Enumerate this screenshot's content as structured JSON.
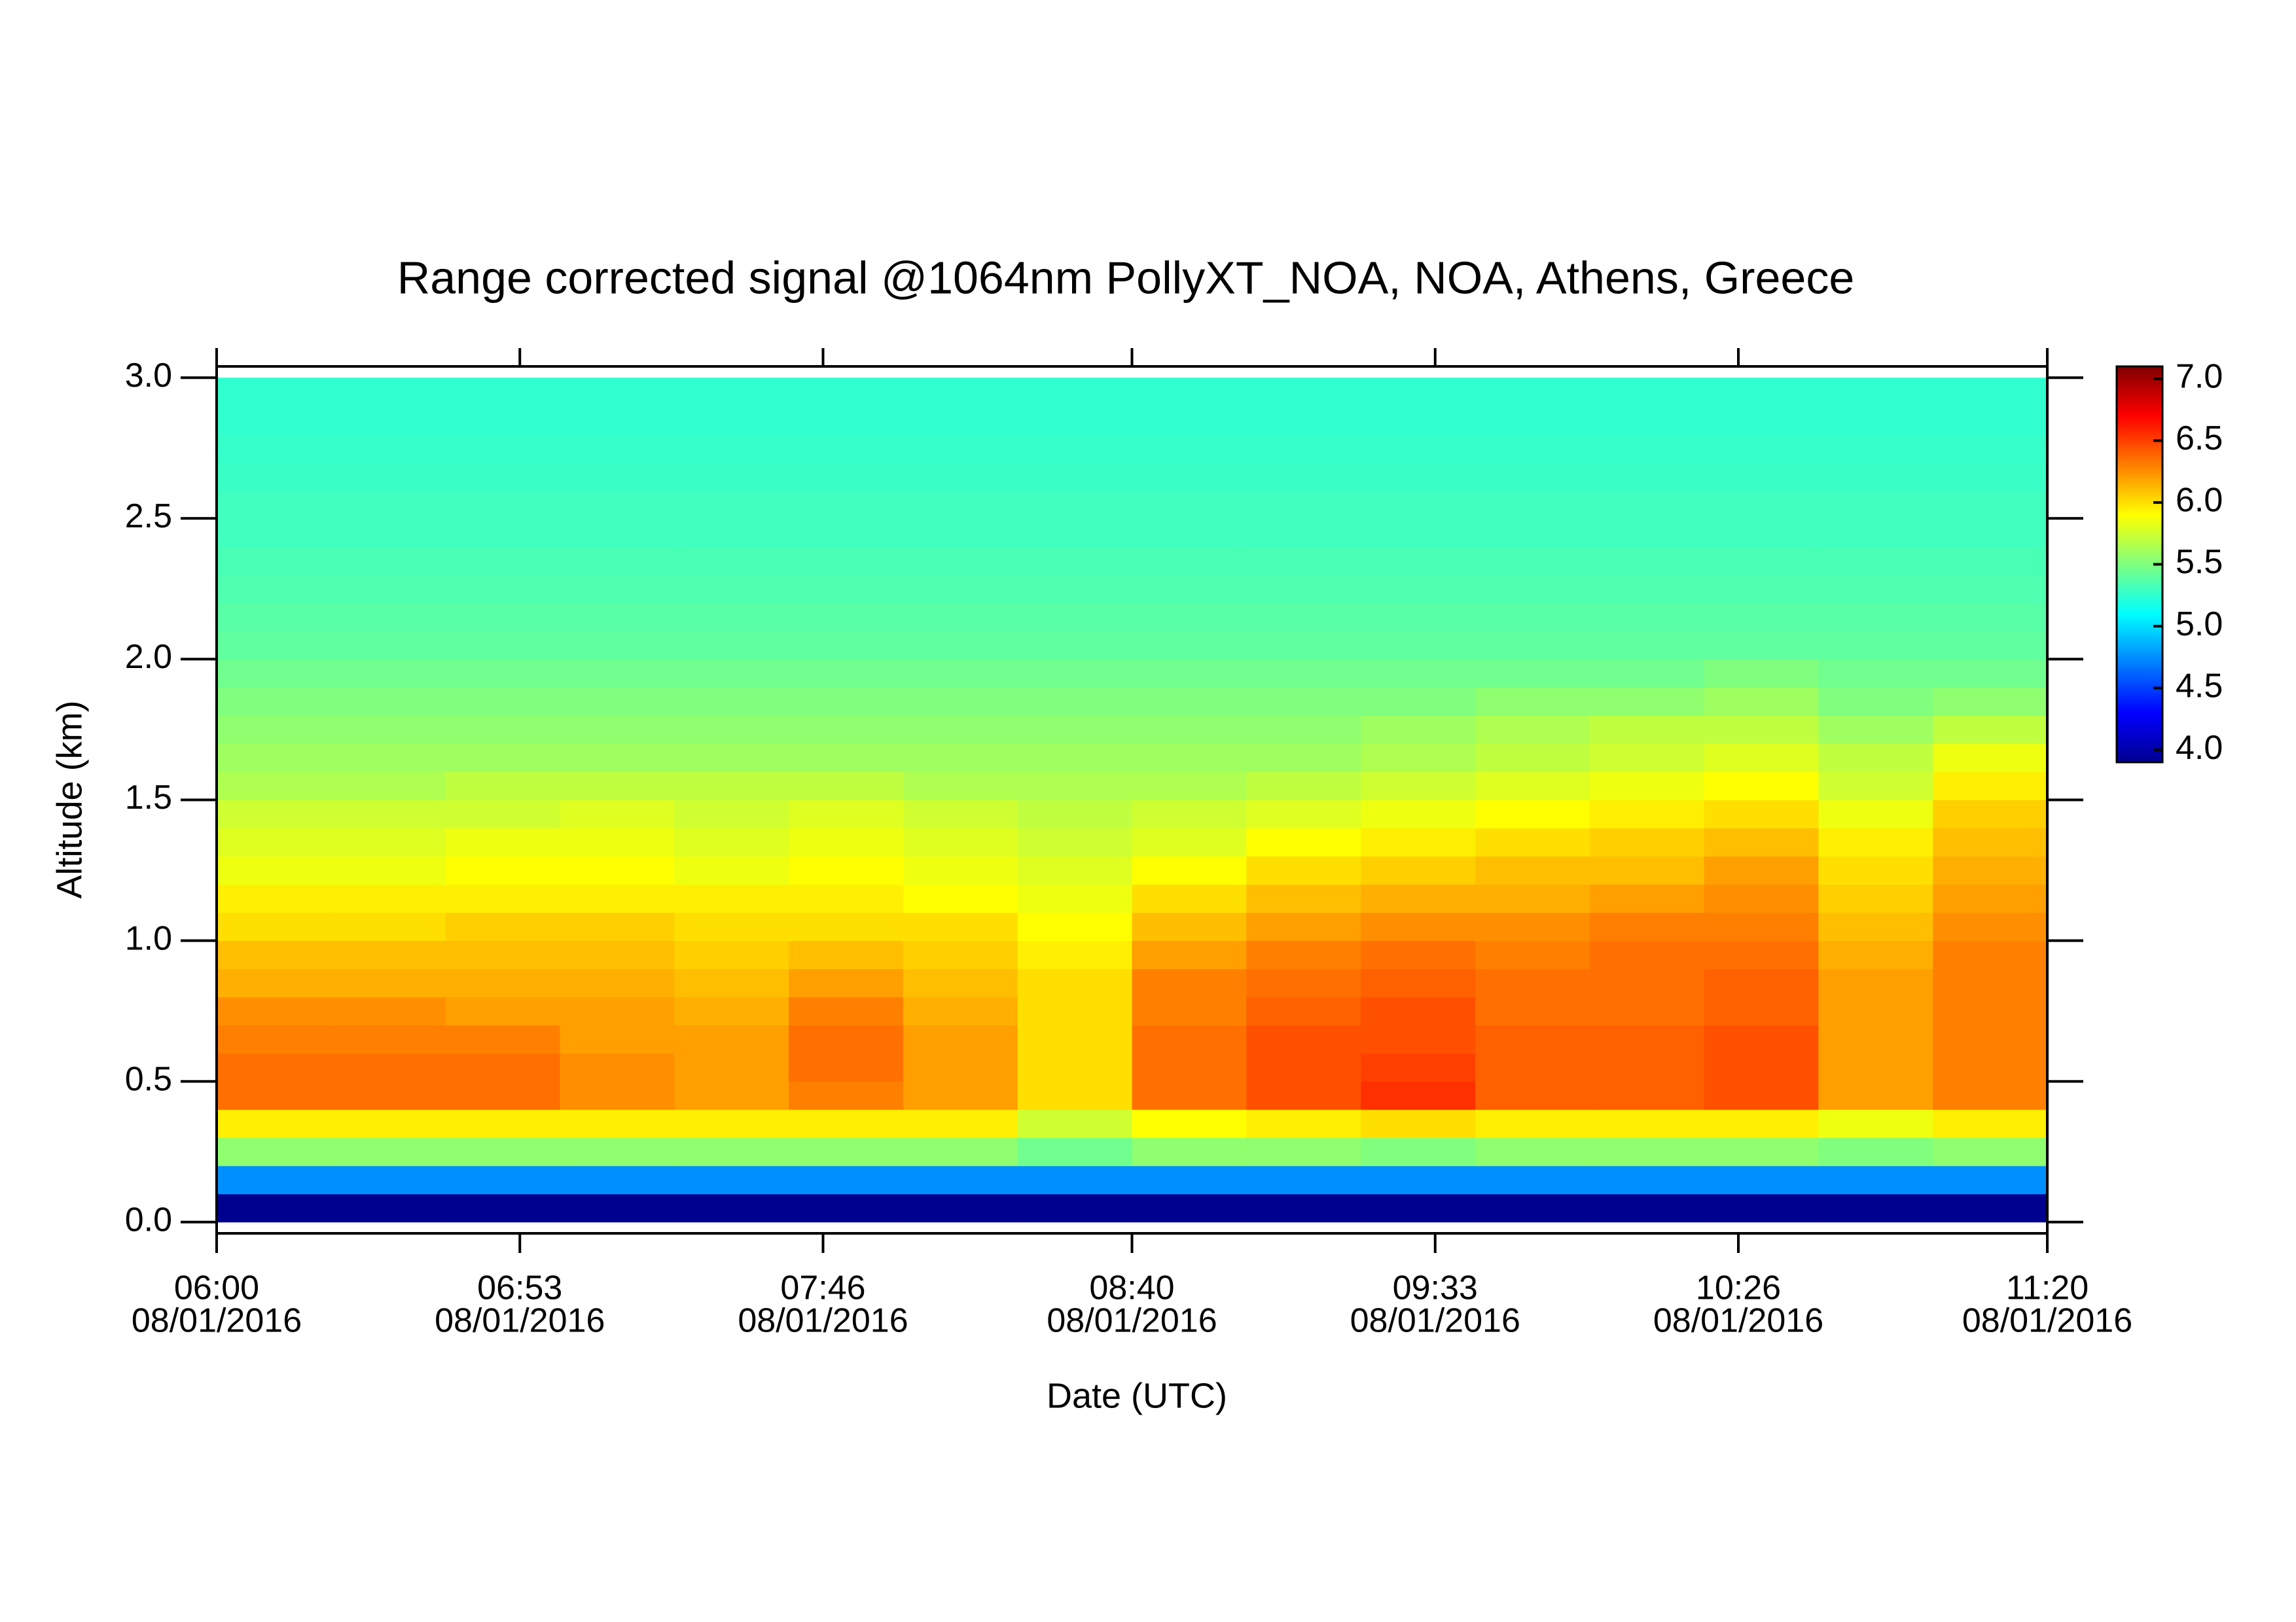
{
  "chart_data": {
    "type": "heatmap",
    "title": "Range corrected signal @1064nm  PollyXT_NOA, NOA, Athens, Greece",
    "x_label": "Date (UTC)",
    "y_label": "Altitude (km)",
    "x": [
      370,
      390,
      410,
      430,
      450,
      470,
      490,
      510,
      530,
      550,
      570,
      590,
      610,
      630,
      650,
      670
    ],
    "y": [
      0.05,
      0.15,
      0.25,
      0.35,
      0.45,
      0.55,
      0.65,
      0.75,
      0.85,
      0.95,
      1.05,
      1.15,
      1.25,
      1.35,
      1.45,
      1.55,
      1.65,
      1.75,
      1.85,
      1.95,
      2.05,
      2.15,
      2.25,
      2.35,
      2.45,
      2.55,
      2.65,
      2.75,
      2.85,
      2.95
    ],
    "values": [
      [
        3.95,
        3.95,
        3.95,
        3.95,
        3.95,
        3.95,
        3.95,
        3.95,
        3.95,
        3.95,
        3.95,
        3.95,
        3.95,
        3.95,
        3.95,
        3.95
      ],
      [
        4.75,
        4.75,
        4.75,
        4.75,
        4.75,
        4.75,
        4.75,
        4.75,
        4.75,
        4.75,
        4.75,
        4.75,
        4.75,
        4.75,
        4.75,
        4.75
      ],
      [
        5.55,
        5.55,
        5.55,
        5.55,
        5.55,
        5.55,
        5.55,
        5.45,
        5.55,
        5.55,
        5.5,
        5.55,
        5.55,
        5.55,
        5.5,
        5.55
      ],
      [
        5.95,
        5.95,
        5.95,
        5.95,
        5.95,
        5.95,
        5.95,
        5.75,
        5.9,
        5.95,
        6.0,
        5.95,
        5.95,
        5.95,
        5.85,
        5.95
      ],
      [
        6.35,
        6.35,
        6.35,
        6.25,
        6.2,
        6.3,
        6.2,
        6.0,
        6.35,
        6.45,
        6.55,
        6.4,
        6.4,
        6.45,
        6.2,
        6.3
      ],
      [
        6.35,
        6.35,
        6.35,
        6.25,
        6.2,
        6.35,
        6.2,
        6.0,
        6.35,
        6.45,
        6.5,
        6.4,
        6.4,
        6.45,
        6.2,
        6.3
      ],
      [
        6.3,
        6.3,
        6.3,
        6.2,
        6.2,
        6.35,
        6.2,
        6.0,
        6.35,
        6.45,
        6.45,
        6.4,
        6.4,
        6.45,
        6.2,
        6.3
      ],
      [
        6.25,
        6.25,
        6.2,
        6.2,
        6.15,
        6.3,
        6.15,
        6.0,
        6.3,
        6.4,
        6.45,
        6.35,
        6.35,
        6.4,
        6.2,
        6.3
      ],
      [
        6.15,
        6.15,
        6.15,
        6.15,
        6.1,
        6.2,
        6.1,
        6.0,
        6.3,
        6.35,
        6.4,
        6.35,
        6.35,
        6.4,
        6.2,
        6.3
      ],
      [
        6.1,
        6.1,
        6.1,
        6.1,
        6.05,
        6.1,
        6.05,
        5.95,
        6.2,
        6.3,
        6.35,
        6.3,
        6.35,
        6.35,
        6.15,
        6.3
      ],
      [
        6.0,
        6.0,
        6.05,
        6.05,
        6.0,
        6.0,
        6.0,
        5.9,
        6.1,
        6.2,
        6.25,
        6.25,
        6.3,
        6.3,
        6.1,
        6.25
      ],
      [
        5.95,
        5.95,
        5.95,
        5.95,
        5.95,
        5.95,
        5.9,
        5.85,
        6.0,
        6.1,
        6.15,
        6.15,
        6.2,
        6.25,
        6.05,
        6.2
      ],
      [
        5.85,
        5.85,
        5.9,
        5.9,
        5.85,
        5.9,
        5.85,
        5.8,
        5.9,
        6.0,
        6.05,
        6.1,
        6.1,
        6.2,
        6.0,
        6.15
      ],
      [
        5.8,
        5.8,
        5.85,
        5.85,
        5.8,
        5.85,
        5.8,
        5.75,
        5.8,
        5.9,
        5.95,
        6.0,
        6.05,
        6.1,
        5.95,
        6.1
      ],
      [
        5.75,
        5.75,
        5.75,
        5.8,
        5.75,
        5.8,
        5.75,
        5.7,
        5.75,
        5.8,
        5.85,
        5.9,
        5.95,
        6.0,
        5.85,
        6.05
      ],
      [
        5.65,
        5.65,
        5.7,
        5.7,
        5.7,
        5.7,
        5.65,
        5.65,
        5.65,
        5.7,
        5.75,
        5.8,
        5.85,
        5.9,
        5.75,
        5.95
      ],
      [
        5.6,
        5.6,
        5.6,
        5.6,
        5.6,
        5.6,
        5.6,
        5.6,
        5.6,
        5.6,
        5.65,
        5.7,
        5.75,
        5.8,
        5.7,
        5.85
      ],
      [
        5.55,
        5.55,
        5.55,
        5.55,
        5.55,
        5.55,
        5.55,
        5.55,
        5.55,
        5.55,
        5.6,
        5.65,
        5.7,
        5.7,
        5.6,
        5.7
      ],
      [
        5.5,
        5.5,
        5.5,
        5.5,
        5.5,
        5.5,
        5.5,
        5.5,
        5.5,
        5.5,
        5.5,
        5.55,
        5.55,
        5.6,
        5.5,
        5.55
      ],
      [
        5.45,
        5.45,
        5.45,
        5.45,
        5.45,
        5.45,
        5.45,
        5.45,
        5.45,
        5.45,
        5.45,
        5.45,
        5.45,
        5.5,
        5.45,
        5.45
      ],
      [
        5.4,
        5.4,
        5.4,
        5.4,
        5.4,
        5.4,
        5.4,
        5.4,
        5.4,
        5.4,
        5.4,
        5.4,
        5.4,
        5.4,
        5.4,
        5.4
      ],
      [
        5.38,
        5.38,
        5.38,
        5.38,
        5.38,
        5.38,
        5.38,
        5.38,
        5.38,
        5.38,
        5.38,
        5.38,
        5.38,
        5.38,
        5.38,
        5.38
      ],
      [
        5.35,
        5.35,
        5.35,
        5.35,
        5.35,
        5.35,
        5.35,
        5.35,
        5.35,
        5.35,
        5.35,
        5.35,
        5.35,
        5.35,
        5.35,
        5.35
      ],
      [
        5.33,
        5.33,
        5.33,
        5.33,
        5.33,
        5.33,
        5.33,
        5.33,
        5.33,
        5.33,
        5.33,
        5.33,
        5.33,
        5.33,
        5.33,
        5.33
      ],
      [
        5.3,
        5.3,
        5.3,
        5.3,
        5.3,
        5.3,
        5.3,
        5.3,
        5.3,
        5.3,
        5.3,
        5.3,
        5.3,
        5.3,
        5.3,
        5.3
      ],
      [
        5.3,
        5.3,
        5.3,
        5.3,
        5.3,
        5.3,
        5.3,
        5.3,
        5.3,
        5.3,
        5.3,
        5.3,
        5.3,
        5.3,
        5.3,
        5.3
      ],
      [
        5.28,
        5.28,
        5.28,
        5.28,
        5.28,
        5.28,
        5.28,
        5.28,
        5.28,
        5.28,
        5.28,
        5.28,
        5.28,
        5.28,
        5.28,
        5.28
      ],
      [
        5.27,
        5.27,
        5.27,
        5.27,
        5.27,
        5.27,
        5.27,
        5.27,
        5.27,
        5.27,
        5.27,
        5.27,
        5.27,
        5.27,
        5.27,
        5.27
      ],
      [
        5.25,
        5.25,
        5.25,
        5.25,
        5.25,
        5.25,
        5.25,
        5.25,
        5.25,
        5.25,
        5.25,
        5.25,
        5.25,
        5.25,
        5.25,
        5.25
      ],
      [
        5.25,
        5.25,
        5.25,
        5.25,
        5.25,
        5.25,
        5.25,
        5.25,
        5.25,
        5.25,
        5.25,
        5.25,
        5.25,
        5.25,
        5.25,
        5.25
      ]
    ],
    "colormap": "jet",
    "xlim": [
      360,
      680
    ],
    "xticks": [
      {
        "value": 360,
        "label": "06:00",
        "date": "08/01/2016"
      },
      {
        "value": 413,
        "label": "06:53",
        "date": "08/01/2016"
      },
      {
        "value": 466,
        "label": "07:46",
        "date": "08/01/2016"
      },
      {
        "value": 520,
        "label": "08:40",
        "date": "08/01/2016"
      },
      {
        "value": 573,
        "label": "09:33",
        "date": "08/01/2016"
      },
      {
        "value": 626,
        "label": "10:26",
        "date": "08/01/2016"
      },
      {
        "value": 680,
        "label": "11:20",
        "date": "08/01/2016"
      }
    ],
    "ylim": [
      -0.04,
      3.04
    ],
    "yticks": [
      {
        "value": 0,
        "label": "0.0"
      },
      0.5,
      {
        "value": 1,
        "label": "1.0"
      },
      1.5,
      {
        "value": 2,
        "label": "2.0"
      },
      2.5,
      {
        "value": 3,
        "label": "3.0"
      }
    ],
    "zlim": [
      3.9,
      7.1
    ],
    "zticks": [
      {
        "value": 4,
        "label": "4.0"
      },
      4.5,
      {
        "value": 5,
        "label": "5.0"
      },
      5.5,
      {
        "value": 6,
        "label": "6.0"
      },
      6.5,
      {
        "value": 7,
        "label": "7.0"
      }
    ]
  }
}
